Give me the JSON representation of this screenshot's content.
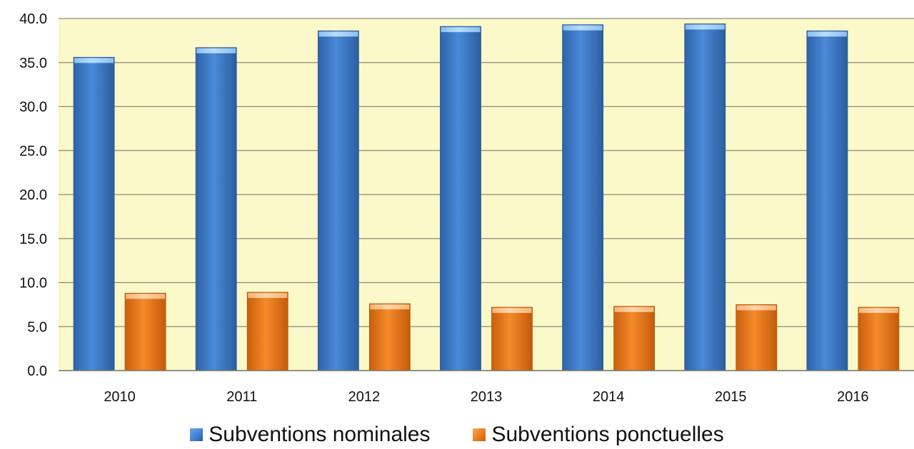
{
  "chart_data": {
    "type": "bar",
    "categories": [
      "2010",
      "2011",
      "2012",
      "2013",
      "2014",
      "2015",
      "2016"
    ],
    "series": [
      {
        "name": "Subventions nominales",
        "values": [
          35.6,
          36.7,
          38.6,
          39.1,
          39.3,
          39.4,
          38.6
        ],
        "color": "#3f7fcf"
      },
      {
        "name": "Subventions ponctuelles",
        "values": [
          8.8,
          8.9,
          7.6,
          7.2,
          7.3,
          7.5,
          7.2
        ],
        "color": "#ea7a1c"
      }
    ],
    "yticks": [
      "0.0",
      "5.0",
      "10.0",
      "15.0",
      "20.0",
      "25.0",
      "30.0",
      "35.0",
      "40.0"
    ],
    "ylim": [
      0,
      40
    ],
    "grid": true,
    "plot_background": "#fbf8c9",
    "legend_position": "bottom"
  }
}
